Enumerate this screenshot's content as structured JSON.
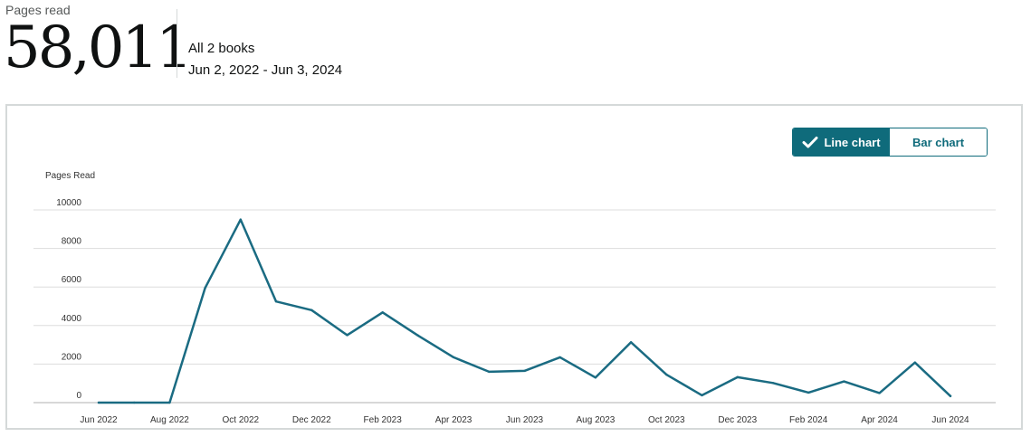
{
  "header": {
    "label": "Pages read",
    "total": "58,011",
    "books": "All 2 books",
    "date_range": "Jun 2, 2022 - Jun 3, 2024"
  },
  "toggle": {
    "line_label": "Line chart",
    "bar_label": "Bar chart",
    "selected": "line",
    "accent": "#0f6b7b"
  },
  "chart_data": {
    "type": "line",
    "ylabel": "Pages Read",
    "ylim": [
      0,
      10000
    ],
    "y_ticks": [
      0,
      2000,
      4000,
      6000,
      8000,
      10000
    ],
    "grid": true,
    "line_color": "#1a6b82",
    "x_ticks": [
      "Jun 2022",
      "Aug 2022",
      "Oct 2022",
      "Dec 2022",
      "Feb 2023",
      "Apr 2023",
      "Jun 2023",
      "Aug 2023",
      "Oct 2023",
      "Dec 2023",
      "Feb 2024",
      "Apr 2024",
      "Jun 2024"
    ],
    "x": [
      "Jun 2022",
      "Jul 2022",
      "Aug 2022",
      "Sep 2022",
      "Oct 2022",
      "Nov 2022",
      "Dec 2022",
      "Jan 2023",
      "Feb 2023",
      "Mar 2023",
      "Apr 2023",
      "May 2023",
      "Jun 2023",
      "Jul 2023",
      "Aug 2023",
      "Sep 2023",
      "Oct 2023",
      "Nov 2023",
      "Dec 2023",
      "Jan 2024",
      "Feb 2024",
      "Mar 2024",
      "Apr 2024",
      "May 2024",
      "Jun 2024"
    ],
    "values": [
      0,
      0,
      0,
      5950,
      9500,
      5250,
      4800,
      3500,
      4680,
      3480,
      2350,
      1600,
      1650,
      2350,
      1300,
      3130,
      1450,
      380,
      1320,
      1020,
      520,
      1100,
      500,
      2080,
      340
    ]
  }
}
